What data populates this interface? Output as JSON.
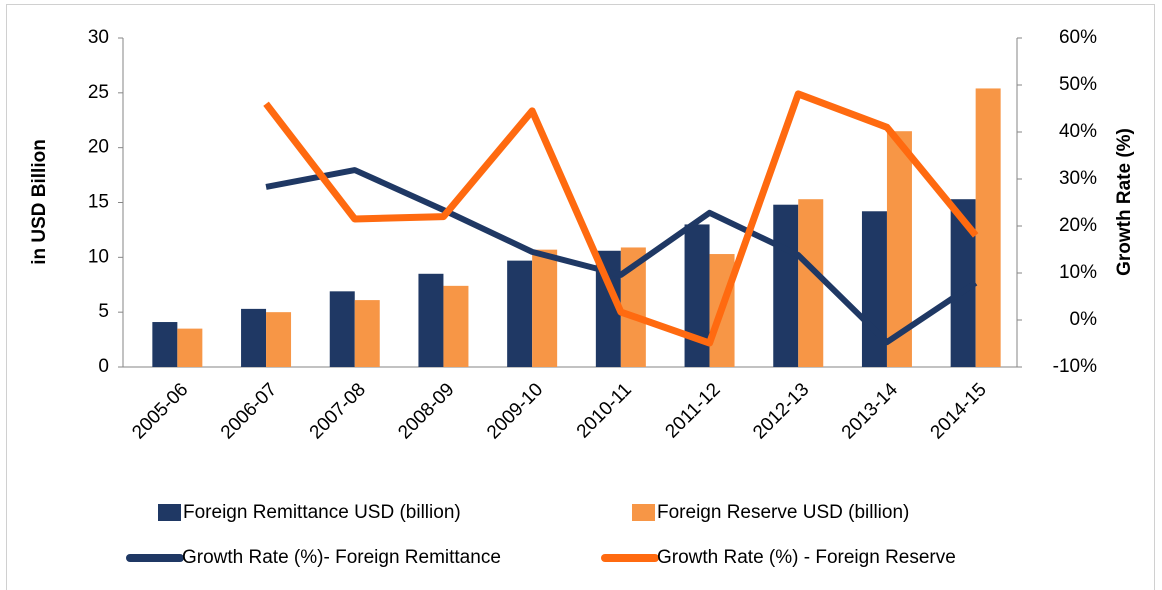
{
  "chart_data": {
    "type": "bar",
    "categories": [
      "2005-06",
      "2006-07",
      "2007-08",
      "2008-09",
      "2009-10",
      "2010-11",
      "2011-12",
      "2012-13",
      "2013-14",
      "2014-15"
    ],
    "series": [
      {
        "name": "Foreign Remittance USD (billion)",
        "type": "bar",
        "color": "#1f3864",
        "values": [
          4.1,
          5.3,
          6.9,
          8.5,
          9.7,
          10.6,
          13.0,
          14.8,
          14.2,
          15.3
        ]
      },
      {
        "name": "Foreign Reserve USD (billion)",
        "type": "bar",
        "color": "#f79646",
        "values": [
          3.5,
          5.0,
          6.1,
          7.4,
          10.7,
          10.9,
          10.3,
          15.3,
          21.5,
          25.4
        ]
      },
      {
        "name": "Growth Rate (%)- Foreign Remittance",
        "type": "line",
        "axis": "y2",
        "color": "#1f3864",
        "values": [
          null,
          28.3,
          31.9,
          23.4,
          14.5,
          9.6,
          22.8,
          13.8,
          -4.7,
          7.9
        ]
      },
      {
        "name": "Growth Rate (%) - Foreign Reserve",
        "type": "line",
        "axis": "y2",
        "color": "#ff6a10",
        "values": [
          null,
          46,
          21.5,
          22,
          44.5,
          1.7,
          -4.9,
          48.1,
          41,
          18
        ]
      }
    ],
    "ylabel": "in USD Billion",
    "y2label": "Growth Rate (%)",
    "ylim": [
      0,
      30
    ],
    "yticks": [
      0,
      5,
      10,
      15,
      20,
      25,
      30
    ],
    "y2lim": [
      -10,
      60
    ],
    "y2ticks": [
      {
        "value": -10,
        "label": "-10%"
      },
      {
        "value": 0,
        "label": "0%"
      },
      {
        "value": 10,
        "label": "10%"
      },
      {
        "value": 20,
        "label": "20%"
      },
      {
        "value": 30,
        "label": "30%"
      },
      {
        "value": 40,
        "label": "40%"
      },
      {
        "value": 50,
        "label": "50%"
      },
      {
        "value": 60,
        "label": "60%"
      }
    ],
    "grid": false,
    "legend": "bottom"
  }
}
